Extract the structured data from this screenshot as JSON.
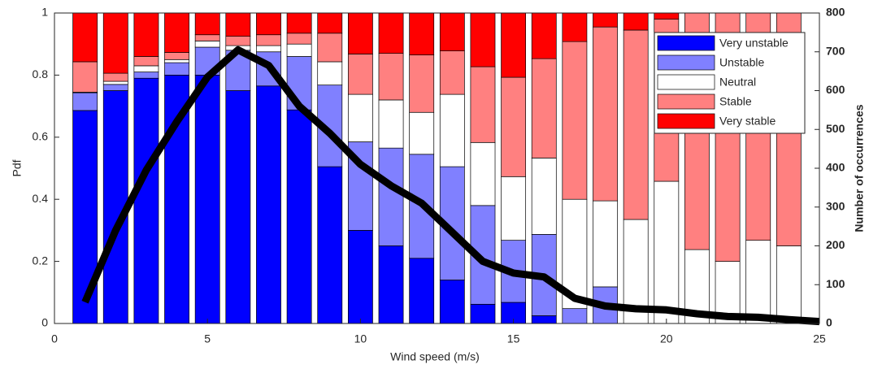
{
  "chart_data": {
    "type": "bar",
    "stacked": true,
    "xlabel": "Wind speed (m/s)",
    "ylabel": "Pdf",
    "y2label": "Number of occurrences",
    "x": [
      1,
      2,
      3,
      4,
      5,
      6,
      7,
      8,
      9,
      10,
      11,
      12,
      13,
      14,
      15,
      16,
      17,
      18,
      19,
      20,
      21,
      22,
      23,
      24
    ],
    "bar_width": 0.8,
    "xlim": [
      0,
      25
    ],
    "xticks": [
      0,
      5,
      10,
      15,
      20,
      25
    ],
    "ylim": [
      0,
      1
    ],
    "yticks": [
      0,
      0.2,
      0.4,
      0.6,
      0.8,
      1
    ],
    "y2lim": [
      0,
      800
    ],
    "y2ticks": [
      0,
      100,
      200,
      300,
      400,
      500,
      600,
      700,
      800
    ],
    "legend": "upper right",
    "series": [
      {
        "name": "Very unstable",
        "color": "#0000ff",
        "values": [
          0.686,
          0.75,
          0.79,
          0.8,
          0.8,
          0.75,
          0.765,
          0.688,
          0.505,
          0.3,
          0.25,
          0.21,
          0.14,
          0.062,
          0.068,
          0.025,
          0,
          0,
          0,
          0,
          0,
          0,
          0,
          0
        ]
      },
      {
        "name": "Unstable",
        "color": "#8080ff",
        "values": [
          0.057,
          0.02,
          0.02,
          0.04,
          0.09,
          0.13,
          0.11,
          0.172,
          0.263,
          0.285,
          0.315,
          0.335,
          0.365,
          0.318,
          0.2,
          0.262,
          0.048,
          0.118,
          0,
          0,
          0,
          0,
          0,
          0
        ]
      },
      {
        "name": "Neutral",
        "color": "#ffffff",
        "values": [
          0.002,
          0.01,
          0.02,
          0.01,
          0.02,
          0.015,
          0.02,
          0.04,
          0.075,
          0.153,
          0.155,
          0.135,
          0.233,
          0.203,
          0.205,
          0.246,
          0.352,
          0.277,
          0.335,
          0.458,
          0.238,
          0.2,
          0.268,
          0.25
        ]
      },
      {
        "name": "Stable",
        "color": "#ff8080",
        "values": [
          0.098,
          0.026,
          0.03,
          0.023,
          0.02,
          0.03,
          0.035,
          0.035,
          0.092,
          0.13,
          0.15,
          0.185,
          0.14,
          0.244,
          0.32,
          0.32,
          0.508,
          0.56,
          0.61,
          0.522,
          0.762,
          0.8,
          0.732,
          0.75
        ]
      },
      {
        "name": "Very stable",
        "color": "#ff0000",
        "values": [
          0.157,
          0.194,
          0.14,
          0.127,
          0.07,
          0.075,
          0.07,
          0.065,
          0.065,
          0.132,
          0.13,
          0.135,
          0.122,
          0.173,
          0.207,
          0.147,
          0.092,
          0.045,
          0.055,
          0.02,
          0,
          0,
          0,
          0
        ]
      }
    ],
    "line": {
      "type": "line",
      "axis": "y2",
      "color": "#000000",
      "x": [
        1,
        2,
        3,
        4,
        5,
        6,
        7,
        8,
        9,
        10,
        11,
        12,
        13,
        14,
        15,
        16,
        17,
        18,
        19,
        20,
        21,
        22,
        23,
        24,
        25
      ],
      "values": [
        55,
        240,
        395,
        520,
        635,
        705,
        665,
        560,
        490,
        410,
        355,
        310,
        235,
        160,
        130,
        120,
        65,
        45,
        38,
        35,
        25,
        18,
        16,
        10,
        5
      ]
    }
  }
}
